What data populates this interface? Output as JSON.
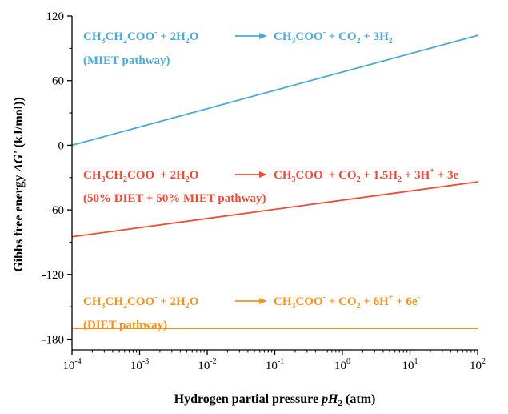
{
  "chart_data": {
    "type": "line",
    "xscale": "log",
    "xlim": [
      0.0001,
      100
    ],
    "ylim": [
      -190,
      120
    ],
    "grid": false,
    "xlabel": {
      "prefix": "Hydrogen partial pressure ",
      "italic": "pH",
      "sub": "2",
      "suffix": " (atm)"
    },
    "ylabel": {
      "prefix": "Gibbs free energy ",
      "italic": "ΔG'",
      "suffix": " (kJ/mol))"
    },
    "x_ticks": [
      {
        "value": 0.0001,
        "base": "10",
        "exp": "-4"
      },
      {
        "value": 0.001,
        "base": "10",
        "exp": "-3"
      },
      {
        "value": 0.01,
        "base": "10",
        "exp": "-2"
      },
      {
        "value": 0.1,
        "base": "10",
        "exp": "-1"
      },
      {
        "value": 1,
        "base": "10",
        "exp": "0"
      },
      {
        "value": 10,
        "base": "10",
        "exp": "1"
      },
      {
        "value": 100,
        "base": "10",
        "exp": "2"
      }
    ],
    "y_ticks": [
      {
        "value": 120,
        "label": "120"
      },
      {
        "value": 60,
        "label": "60"
      },
      {
        "value": 0,
        "label": "0"
      },
      {
        "value": -60,
        "label": "-60"
      },
      {
        "value": -120,
        "label": "-120"
      },
      {
        "value": -180,
        "label": "-180"
      }
    ],
    "y_minor_ticks": [
      90,
      30,
      -30,
      -90,
      -150
    ],
    "series": [
      {
        "color": "#4ba9d6",
        "x": [
          0.0001,
          100
        ],
        "y": [
          0,
          102
        ]
      },
      {
        "color": "#ee4a36",
        "x": [
          0.0001,
          100
        ],
        "y": [
          -85,
          -34
        ]
      },
      {
        "color": "#f5921e",
        "x": [
          0.0001,
          100
        ],
        "y": [
          -170,
          -170
        ]
      }
    ],
    "annotations": [
      {
        "color": "#4ba9d6",
        "equation": {
          "lhs": [
            [
              "CH",
              ""
            ],
            [
              "3",
              "sub"
            ],
            [
              "CH",
              ""
            ],
            [
              "2",
              "sub"
            ],
            [
              "COO",
              ""
            ],
            [
              "-",
              "sup"
            ],
            [
              " + 2H",
              ""
            ],
            [
              "2",
              "sub"
            ],
            [
              "O",
              ""
            ]
          ],
          "rhs": [
            [
              "CH",
              ""
            ],
            [
              "3",
              "sub"
            ],
            [
              "COO",
              ""
            ],
            [
              "-",
              "sup"
            ],
            [
              " + CO",
              ""
            ],
            [
              "2",
              "sub"
            ],
            [
              " + 3H",
              ""
            ],
            [
              "2",
              "sub"
            ]
          ]
        },
        "pathway": "(MIET pathway)"
      },
      {
        "color": "#ee4a36",
        "equation": {
          "lhs": [
            [
              "CH",
              ""
            ],
            [
              "3",
              "sub"
            ],
            [
              "CH",
              ""
            ],
            [
              "2",
              "sub"
            ],
            [
              "COO",
              ""
            ],
            [
              "-",
              "sup"
            ],
            [
              " + 2H",
              ""
            ],
            [
              "2",
              "sub"
            ],
            [
              "O",
              ""
            ]
          ],
          "rhs": [
            [
              "CH",
              ""
            ],
            [
              "3",
              "sub"
            ],
            [
              "COO",
              ""
            ],
            [
              "-",
              "sup"
            ],
            [
              " + CO",
              ""
            ],
            [
              "2",
              "sub"
            ],
            [
              " + 1.5H",
              ""
            ],
            [
              "2",
              "sub"
            ],
            [
              " + 3H",
              ""
            ],
            [
              "+",
              "sup"
            ],
            [
              " + 3e",
              ""
            ],
            [
              "-",
              "sup"
            ]
          ]
        },
        "pathway": "(50% DIET + 50% MIET pathway)"
      },
      {
        "color": "#f5921e",
        "equation": {
          "lhs": [
            [
              "CH",
              ""
            ],
            [
              "3",
              "sub"
            ],
            [
              "CH",
              ""
            ],
            [
              "2",
              "sub"
            ],
            [
              "COO",
              ""
            ],
            [
              "-",
              "sup"
            ],
            [
              " + 2H",
              ""
            ],
            [
              "2",
              "sub"
            ],
            [
              "O",
              ""
            ]
          ],
          "rhs": [
            [
              "CH",
              ""
            ],
            [
              "3",
              "sub"
            ],
            [
              "COO",
              ""
            ],
            [
              "-",
              "sup"
            ],
            [
              " + CO",
              ""
            ],
            [
              "2",
              "sub"
            ],
            [
              " + 6H",
              ""
            ],
            [
              "+",
              "sup"
            ],
            [
              " + 6e",
              ""
            ],
            [
              "-",
              "sup"
            ]
          ]
        },
        "pathway": "(DIET pathway)"
      }
    ]
  }
}
